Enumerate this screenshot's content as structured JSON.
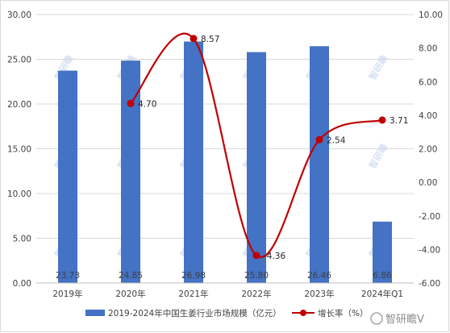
{
  "chart_data": {
    "type": "bar+line",
    "categories": [
      "2019年",
      "2020年",
      "2021年",
      "2022年",
      "2023年",
      "2024年Q1"
    ],
    "series": [
      {
        "name": "2019-2024年中国生姜行业市场规模（亿元）",
        "type": "bar",
        "axis": "left",
        "color": "#4472c4",
        "values": [
          23.73,
          24.85,
          26.98,
          25.8,
          26.46,
          6.86
        ],
        "labels": [
          "23.73",
          "24.85",
          "26.98",
          "25.80",
          "26.46",
          "6.86"
        ]
      },
      {
        "name": "增长率（%）",
        "type": "line",
        "axis": "right",
        "color": "#c00000",
        "values": [
          null,
          4.7,
          8.57,
          -4.36,
          2.54,
          3.71
        ],
        "labels": [
          null,
          "4.70",
          "8.57",
          "-4.36",
          "2.54",
          "3.71"
        ]
      }
    ],
    "y_left": {
      "min": 0,
      "max": 30,
      "step": 5,
      "ticks": [
        "0.00",
        "5.00",
        "10.00",
        "15.00",
        "20.00",
        "25.00",
        "30.00"
      ]
    },
    "y_right": {
      "min": -6,
      "max": 10,
      "step": 2,
      "ticks": [
        "-6.00",
        "-4.00",
        "-2.00",
        "0.00",
        "2.00",
        "4.00",
        "6.00",
        "8.00",
        "10.00"
      ]
    },
    "grid": true,
    "legend": "bottom",
    "watermark_text": "智研瞻",
    "brand_text": "智研瞻V"
  }
}
